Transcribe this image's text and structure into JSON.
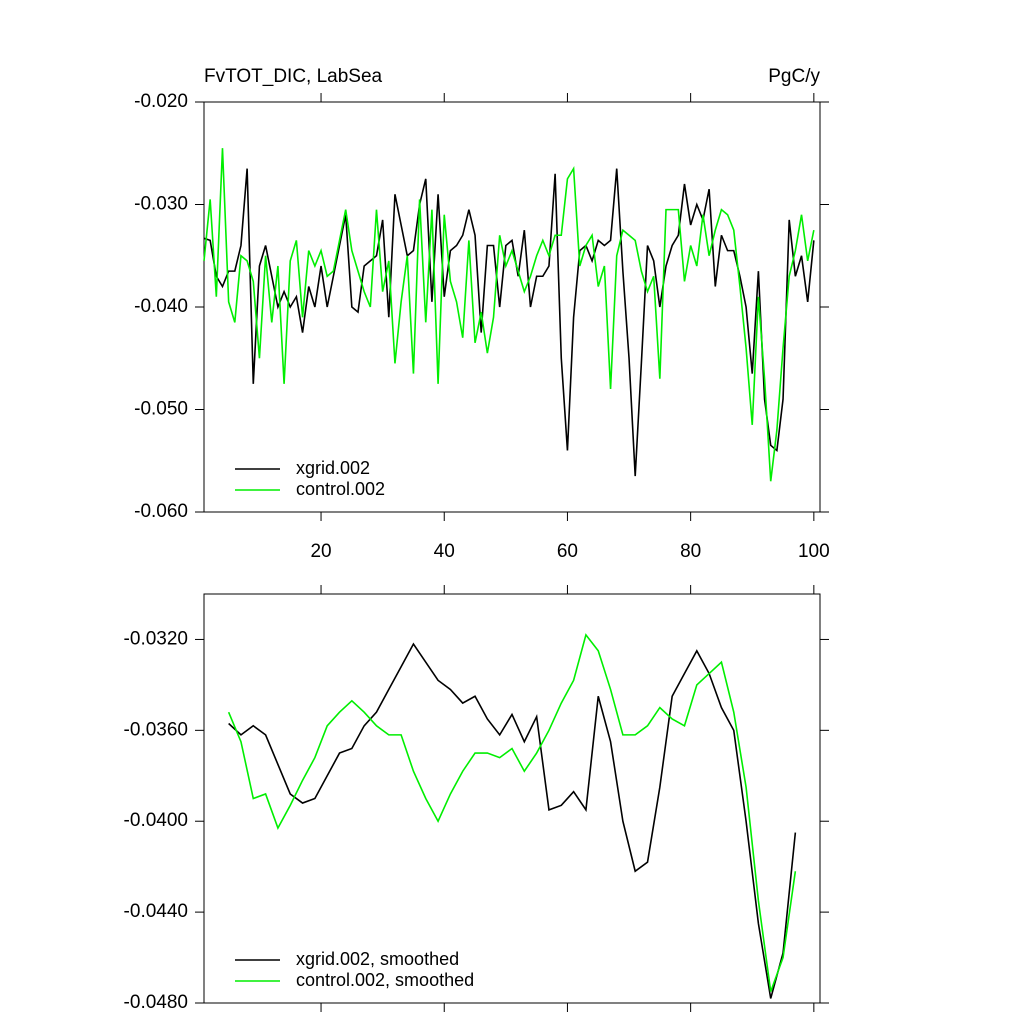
{
  "chart_data": [
    {
      "type": "line",
      "title": "FvTOT_DIC, LabSea",
      "units": "PgC/y",
      "x": [
        1,
        2,
        3,
        4,
        5,
        6,
        7,
        8,
        9,
        10,
        11,
        12,
        13,
        14,
        15,
        16,
        17,
        18,
        19,
        20,
        21,
        22,
        23,
        24,
        25,
        26,
        27,
        28,
        29,
        30,
        31,
        32,
        33,
        34,
        35,
        36,
        37,
        38,
        39,
        40,
        41,
        42,
        43,
        44,
        45,
        46,
        47,
        48,
        49,
        50,
        51,
        52,
        53,
        54,
        55,
        56,
        57,
        58,
        59,
        60,
        61,
        62,
        63,
        64,
        65,
        66,
        67,
        68,
        69,
        70,
        71,
        72,
        73,
        74,
        75,
        76,
        77,
        78,
        79,
        80,
        81,
        82,
        83,
        84,
        85,
        86,
        87,
        88,
        89,
        90,
        91,
        92,
        93,
        94,
        95,
        96,
        97,
        98,
        99,
        100
      ],
      "series": [
        {
          "name": "xgrid.002",
          "color": "#000000",
          "values": [
            -0.0333,
            -0.0335,
            -0.037,
            -0.038,
            -0.0365,
            -0.0365,
            -0.034,
            -0.0265,
            -0.0475,
            -0.036,
            -0.034,
            -0.037,
            -0.04,
            -0.0385,
            -0.04,
            -0.039,
            -0.0425,
            -0.038,
            -0.04,
            -0.036,
            -0.04,
            -0.037,
            -0.034,
            -0.031,
            -0.04,
            -0.0405,
            -0.036,
            -0.0355,
            -0.035,
            -0.0315,
            -0.041,
            -0.029,
            -0.032,
            -0.035,
            -0.0345,
            -0.03,
            -0.0275,
            -0.0395,
            -0.029,
            -0.039,
            -0.0345,
            -0.034,
            -0.033,
            -0.0305,
            -0.033,
            -0.0425,
            -0.034,
            -0.034,
            -0.04,
            -0.034,
            -0.0335,
            -0.037,
            -0.0325,
            -0.04,
            -0.037,
            -0.037,
            -0.036,
            -0.027,
            -0.045,
            -0.054,
            -0.041,
            -0.0345,
            -0.034,
            -0.0355,
            -0.0335,
            -0.034,
            -0.0335,
            -0.0265,
            -0.0365,
            -0.045,
            -0.0565,
            -0.0455,
            -0.034,
            -0.0355,
            -0.04,
            -0.036,
            -0.034,
            -0.033,
            -0.028,
            -0.032,
            -0.03,
            -0.0315,
            -0.0285,
            -0.038,
            -0.033,
            -0.0345,
            -0.0345,
            -0.037,
            -0.04,
            -0.0465,
            -0.0365,
            -0.049,
            -0.0535,
            -0.054,
            -0.049,
            -0.0315,
            -0.037,
            -0.035,
            -0.0395,
            -0.0335
          ]
        },
        {
          "name": "control.002",
          "color": "#00ee00",
          "values": [
            -0.0355,
            -0.0295,
            -0.039,
            -0.0245,
            -0.0395,
            -0.0415,
            -0.035,
            -0.0355,
            -0.0375,
            -0.045,
            -0.035,
            -0.0415,
            -0.036,
            -0.0475,
            -0.0355,
            -0.0335,
            -0.041,
            -0.0345,
            -0.036,
            -0.0345,
            -0.037,
            -0.0365,
            -0.0335,
            -0.0305,
            -0.0345,
            -0.0365,
            -0.0385,
            -0.04,
            -0.0305,
            -0.0385,
            -0.0355,
            -0.0455,
            -0.0395,
            -0.035,
            -0.0465,
            -0.0295,
            -0.0415,
            -0.0305,
            -0.0475,
            -0.031,
            -0.0375,
            -0.0395,
            -0.043,
            -0.0335,
            -0.0435,
            -0.0405,
            -0.0445,
            -0.041,
            -0.033,
            -0.036,
            -0.0345,
            -0.0365,
            -0.0385,
            -0.037,
            -0.035,
            -0.0335,
            -0.035,
            -0.033,
            -0.033,
            -0.0275,
            -0.0265,
            -0.036,
            -0.034,
            -0.033,
            -0.038,
            -0.036,
            -0.048,
            -0.035,
            -0.0325,
            -0.033,
            -0.0335,
            -0.0365,
            -0.0385,
            -0.037,
            -0.047,
            -0.0305,
            -0.0305,
            -0.0305,
            -0.0375,
            -0.034,
            -0.036,
            -0.031,
            -0.035,
            -0.0325,
            -0.0305,
            -0.031,
            -0.0325,
            -0.038,
            -0.044,
            -0.0515,
            -0.039,
            -0.047,
            -0.057,
            -0.052,
            -0.044,
            -0.037,
            -0.0345,
            -0.031,
            -0.0355,
            -0.0325
          ]
        }
      ],
      "xlim": [
        1,
        101
      ],
      "xticks": [
        20,
        40,
        60,
        80,
        100
      ],
      "ylim": [
        -0.06,
        -0.02
      ],
      "yticks": [
        {
          "value": -0.06,
          "label": "-0.060"
        },
        {
          "value": -0.05,
          "label": "-0.050"
        },
        {
          "value": -0.04,
          "label": "-0.040"
        },
        {
          "value": -0.03,
          "label": "-0.030"
        },
        {
          "value": -0.02,
          "label": "-0.020"
        }
      ],
      "x_tick_labels": true,
      "legend": "lower left"
    },
    {
      "type": "line",
      "x": [
        5,
        7,
        9,
        11,
        13,
        15,
        17,
        19,
        21,
        23,
        25,
        27,
        29,
        31,
        33,
        35,
        37,
        39,
        41,
        43,
        45,
        47,
        49,
        51,
        53,
        55,
        57,
        59,
        61,
        63,
        65,
        67,
        69,
        71,
        73,
        75,
        77,
        79,
        81,
        83,
        85,
        87,
        89,
        91,
        93,
        95,
        97
      ],
      "series": [
        {
          "name": "xgrid.002, smoothed",
          "color": "#000000",
          "values": [
            -0.0357,
            -0.0362,
            -0.0358,
            -0.0362,
            -0.0375,
            -0.0388,
            -0.0392,
            -0.039,
            -0.038,
            -0.037,
            -0.0368,
            -0.0358,
            -0.0352,
            -0.0342,
            -0.0332,
            -0.0322,
            -0.033,
            -0.0338,
            -0.0342,
            -0.0348,
            -0.0345,
            -0.0355,
            -0.0362,
            -0.0353,
            -0.0365,
            -0.0354,
            -0.0395,
            -0.0393,
            -0.0387,
            -0.0395,
            -0.0345,
            -0.0365,
            -0.04,
            -0.0422,
            -0.0418,
            -0.0385,
            -0.0345,
            -0.0335,
            -0.0325,
            -0.0335,
            -0.035,
            -0.036,
            -0.04,
            -0.0445,
            -0.0478,
            -0.0458,
            -0.0405
          ]
        },
        {
          "name": "control.002, smoothed",
          "color": "#00ee00",
          "values": [
            -0.0352,
            -0.0365,
            -0.039,
            -0.0388,
            -0.0403,
            -0.0393,
            -0.0382,
            -0.0372,
            -0.0358,
            -0.0352,
            -0.0347,
            -0.0352,
            -0.0358,
            -0.0362,
            -0.0362,
            -0.0378,
            -0.039,
            -0.04,
            -0.0388,
            -0.0378,
            -0.037,
            -0.037,
            -0.0372,
            -0.0368,
            -0.0378,
            -0.037,
            -0.036,
            -0.0348,
            -0.0338,
            -0.0318,
            -0.0325,
            -0.0342,
            -0.0362,
            -0.0362,
            -0.0358,
            -0.035,
            -0.0355,
            -0.0358,
            -0.034,
            -0.0335,
            -0.033,
            -0.0352,
            -0.0385,
            -0.0435,
            -0.0475,
            -0.046,
            -0.0422
          ]
        }
      ],
      "xlim": [
        1,
        101
      ],
      "xticks": [
        20,
        40,
        60,
        80,
        100
      ],
      "ylim": [
        -0.048,
        -0.03
      ],
      "yticks": [
        {
          "value": -0.048,
          "label": "-0.0480"
        },
        {
          "value": -0.044,
          "label": "-0.0440"
        },
        {
          "value": -0.04,
          "label": "-0.0400"
        },
        {
          "value": -0.036,
          "label": "-0.0360"
        },
        {
          "value": -0.032,
          "label": "-0.0320"
        }
      ],
      "x_tick_labels": false,
      "legend": "lower left"
    }
  ]
}
